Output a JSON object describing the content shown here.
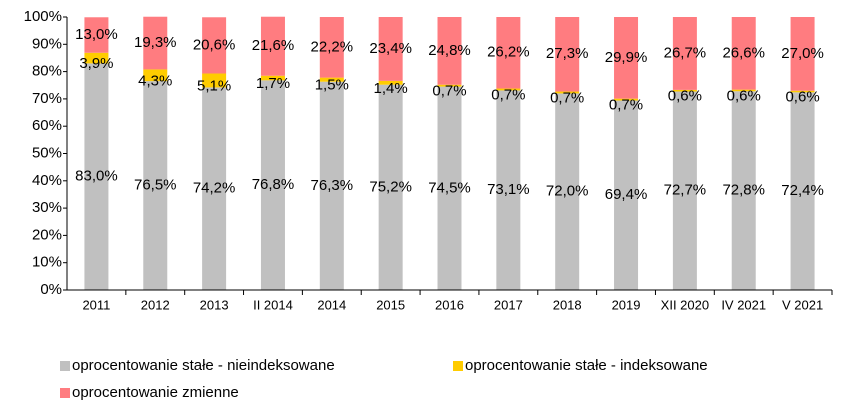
{
  "chart_data": {
    "type": "stacked_bar",
    "categories": [
      "2011",
      "2012",
      "2013",
      "II 2014",
      "2014",
      "2015",
      "2016",
      "2017",
      "2018",
      "2019",
      "XII 2020",
      "IV 2021",
      "V 2021"
    ],
    "series": [
      {
        "name": "oprocentowanie stałe - nieindeksowane",
        "color": "#c0c0c0",
        "values": [
          83.0,
          76.5,
          74.2,
          76.8,
          76.3,
          75.2,
          74.5,
          73.1,
          72.0,
          69.4,
          72.7,
          72.8,
          72.4
        ],
        "value_labels": [
          "83,0%",
          "76,5%",
          "74,2%",
          "76,8%",
          "76,3%",
          "75,2%",
          "74,5%",
          "73,1%",
          "72,0%",
          "69,4%",
          "72,7%",
          "72,8%",
          "72,4%"
        ]
      },
      {
        "name": "oprocentowanie stałe - indeksowane",
        "color": "#ffcc00",
        "values": [
          3.9,
          4.3,
          5.1,
          1.7,
          1.5,
          1.4,
          0.7,
          0.7,
          0.7,
          0.7,
          0.6,
          0.6,
          0.6
        ],
        "value_labels": [
          "3,9%",
          "4,3%",
          "5,1%",
          "1,7%",
          "1,5%",
          "1,4%",
          "0,7%",
          "0,7%",
          "0,7%",
          "0,7%",
          "0,6%",
          "0,6%",
          "0,6%"
        ]
      },
      {
        "name": "oprocentowanie zmienne",
        "color": "#ff7c80",
        "values": [
          13.0,
          19.3,
          20.6,
          21.6,
          22.2,
          23.4,
          24.8,
          26.2,
          27.3,
          29.9,
          26.7,
          26.6,
          27.0
        ],
        "value_labels": [
          "13,0%",
          "19,3%",
          "20,6%",
          "21,6%",
          "22,2%",
          "23,4%",
          "24,8%",
          "26,2%",
          "27,3%",
          "29,9%",
          "26,7%",
          "26,6%",
          "27,0%"
        ]
      }
    ],
    "ylim": [
      0,
      100
    ],
    "yticks": [
      {
        "value": 0,
        "label": "0%"
      },
      {
        "value": 10,
        "label": "10%"
      },
      {
        "value": 20,
        "label": "20%"
      },
      {
        "value": 30,
        "label": "30%"
      },
      {
        "value": 40,
        "label": "40%"
      },
      {
        "value": 50,
        "label": "50%"
      },
      {
        "value": 60,
        "label": "60%"
      },
      {
        "value": 70,
        "label": "70%"
      },
      {
        "value": 80,
        "label": "80%"
      },
      {
        "value": 90,
        "label": "90%"
      },
      {
        "value": 100,
        "label": "100%"
      }
    ],
    "grid": false
  }
}
